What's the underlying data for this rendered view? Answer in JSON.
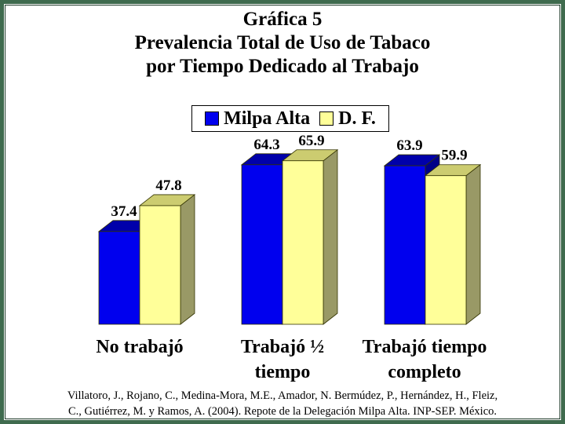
{
  "title_lines": [
    "Gráfica 5",
    "Prevalencia Total de Uso de Tabaco",
    "por Tiempo Dedicado al Trabajo"
  ],
  "source_lines": [
    "Villatoro, J., Rojano, C., Medina-Mora, M.E., Amador, N. Bermúdez, P., Hernández, H., Fleiz,",
    "C., Gutiérrez, M. y Ramos, A. (2004). Repote de la Delegación Milpa Alta. INP-SEP. México."
  ],
  "colors": {
    "milpa_front": "#0000ee",
    "milpa_top": "#0000aa",
    "milpa_side": "#000088",
    "df_front": "#ffff99",
    "df_top": "#cccc70",
    "df_side": "#999966",
    "frame": "#3f6b4e"
  },
  "chart_data": {
    "type": "bar",
    "categories": [
      "No trabajó",
      "Trabajó ½ tiempo",
      "Trabajó tiempo completo"
    ],
    "category_lines": [
      [
        "No trabajó"
      ],
      [
        "Trabajó ½",
        "tiempo"
      ],
      [
        "Trabajó tiempo",
        "completo"
      ]
    ],
    "series": [
      {
        "name": "Milpa Alta",
        "values": [
          37.4,
          64.3,
          63.9
        ],
        "labels": [
          "37.4",
          "64.3",
          "63.9"
        ]
      },
      {
        "name": "D. F.",
        "values": [
          47.8,
          65.9,
          59.9
        ],
        "labels": [
          "47.8",
          "65.9",
          "59.9"
        ]
      }
    ],
    "ylim": [
      0,
      100
    ],
    "grid": false,
    "legend_position": "top-center",
    "style": "3d-clustered-bar"
  }
}
